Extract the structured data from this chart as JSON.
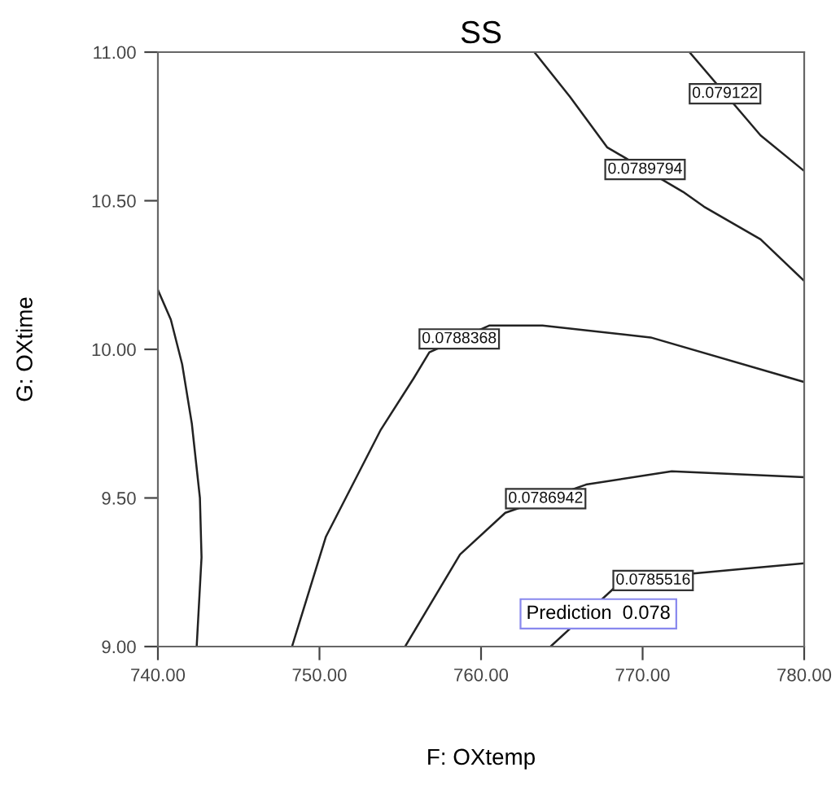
{
  "chart_data": {
    "type": "line",
    "title": "SS",
    "xlabel": "F: OXtemp",
    "ylabel": "G: OXtime",
    "xlim": [
      740,
      780
    ],
    "ylim": [
      9,
      11
    ],
    "xticks": [
      {
        "value": 740,
        "label": "740.00"
      },
      {
        "value": 750,
        "label": "750.00"
      },
      {
        "value": 760,
        "label": "760.00"
      },
      {
        "value": 770,
        "label": "770.00"
      },
      {
        "value": 780,
        "label": "780.00"
      }
    ],
    "yticks": [
      {
        "value": 9,
        "label": "9.00"
      },
      {
        "value": 9.5,
        "label": "9.50"
      },
      {
        "value": 10,
        "label": "10.00"
      },
      {
        "value": 10.5,
        "label": "10.50"
      },
      {
        "value": 11,
        "label": "11.00"
      }
    ],
    "grid": false,
    "marker": "none",
    "line_style": "solid",
    "series": [
      {
        "color": "#222222",
        "x": [
          740,
          740.8,
          741.5,
          742.1,
          742.6,
          742.7,
          742.4
        ],
        "values": [
          10.2,
          10.1,
          9.95,
          9.75,
          9.5,
          9.3,
          9.0
        ]
      },
      {
        "name": "0.0788368",
        "color": "#222222",
        "x": [
          748.3,
          750.4,
          753.8,
          755.8,
          756.8,
          760.5,
          763.8,
          770.5,
          780
        ],
        "values": [
          9.0,
          9.37,
          9.73,
          9.9,
          9.99,
          10.08,
          10.08,
          10.04,
          9.89
        ]
      },
      {
        "name": "0.0786942",
        "color": "#222222",
        "x": [
          755.3,
          758.7,
          761.5,
          766.5,
          771.8,
          780
        ],
        "values": [
          9.0,
          9.31,
          9.45,
          9.545,
          9.59,
          9.57
        ]
      },
      {
        "name": "0.0785516",
        "color": "#222222",
        "x": [
          764.3,
          768.3,
          773,
          776,
          780
        ],
        "values": [
          9.0,
          9.2,
          9.245,
          9.26,
          9.28
        ]
      },
      {
        "name": "0.0789794",
        "color": "#222222",
        "x": [
          763.3,
          765.5,
          767.8,
          772.5,
          773.8,
          777.3,
          780
        ],
        "values": [
          11.0,
          10.85,
          10.68,
          10.53,
          10.48,
          10.37,
          10.23
        ]
      },
      {
        "name": "0.079122",
        "color": "#222222",
        "x": [
          772.9,
          777.3,
          780
        ],
        "values": [
          11.0,
          10.72,
          10.6
        ]
      }
    ],
    "annotations": [
      "Prediction  0.078"
    ]
  }
}
